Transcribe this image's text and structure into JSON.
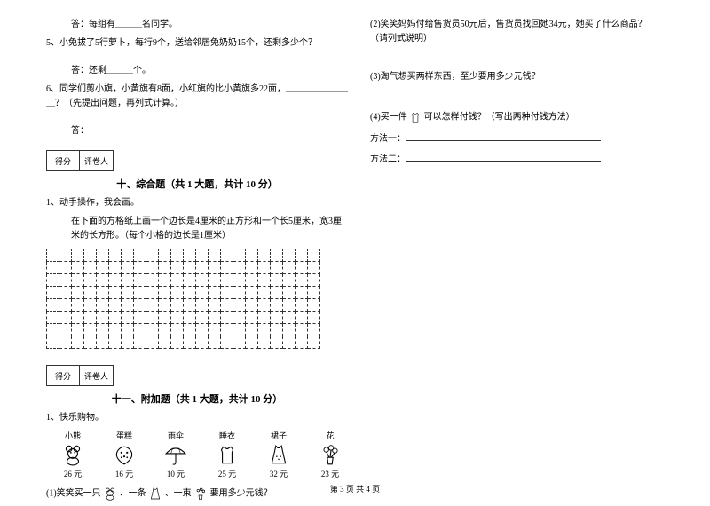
{
  "left": {
    "q_answer_group": "答：每组有＿＿＿名同学。",
    "q5": "5、小兔拔了5行萝卜，每行9个，送给邻居兔奶奶15个，还剩多少个？",
    "q5_answer": "答：还剩＿＿＿个。",
    "q6": "6、同学们剪小旗，小黄旗有8面，小红旗的比小黄旗多22面，＿＿＿＿＿＿＿＿？（先提出问题，再列式计算。）",
    "q6_answer": "答：",
    "score_label_1": "得分",
    "score_label_2": "评卷人",
    "section10_title": "十、综合题（共 1 大题，共计 10 分）",
    "s10_q1": "1、动手操作，我会画。",
    "s10_q1_desc": "在下面的方格纸上画一个边长是4厘米的正方形和一个长5厘米，宽3厘米的长方形。（每个小格的边长是1厘米）",
    "section11_title": "十一、附加题（共 1 大题，共计 10 分）",
    "s11_q1": "1、快乐购物。",
    "items": [
      {
        "name": "小熊",
        "price": "26 元"
      },
      {
        "name": "蛋糕",
        "price": "16 元"
      },
      {
        "name": "雨伞",
        "price": "10 元"
      },
      {
        "name": "睡衣",
        "price": "25 元"
      },
      {
        "name": "裙子",
        "price": "32 元"
      },
      {
        "name": "花",
        "price": "23 元"
      }
    ],
    "s11_sub1_a": "(1)笑笑买一只",
    "s11_sub1_b": "、一条",
    "s11_sub1_c": "、一束",
    "s11_sub1_d": "要用多少元钱？"
  },
  "right": {
    "sub2": "(2)笑笑妈妈付给售货员50元后，售货员找回她34元，她买了什么商品？（请列式说明）",
    "sub3": "(3)淘气想买两样东西，至少要用多少元钱？",
    "sub4_a": "(4)买一件",
    "sub4_b": "可以怎样付钱？（写出两种付钱方法）",
    "method1": "方法一：",
    "method2": "方法二："
  },
  "footer": "第 3 页 共 4 页",
  "grid": {
    "rows": 8,
    "cols": 22
  }
}
